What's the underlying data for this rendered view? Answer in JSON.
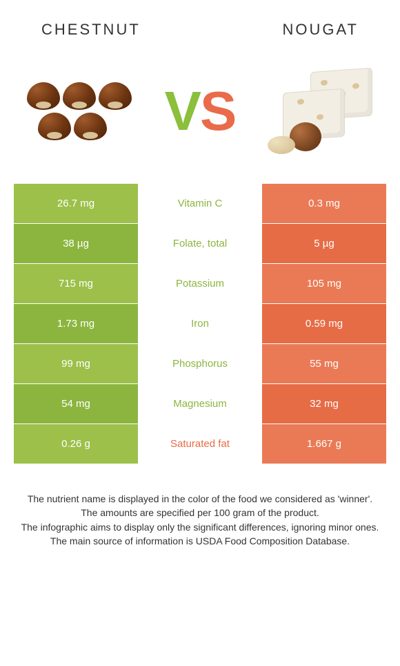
{
  "header": {
    "left_title": "Chestnut",
    "right_title": "Nougat"
  },
  "vs": {
    "v": "V",
    "s": "S"
  },
  "colors": {
    "left_bg_odd": "#9cc04a",
    "left_bg_even": "#8cb53f",
    "right_bg_odd": "#ea7a55",
    "right_bg_even": "#e66c46",
    "mid_bg": "#ffffff",
    "winner_left": "#8cb53f",
    "winner_right": "#e66c46",
    "text_white": "#ffffff",
    "body_text": "#333333"
  },
  "table": {
    "rows": [
      {
        "left": "26.7 mg",
        "label": "Vitamin C",
        "right": "0.3 mg",
        "winner": "left"
      },
      {
        "left": "38 µg",
        "label": "Folate, total",
        "right": "5 µg",
        "winner": "left"
      },
      {
        "left": "715 mg",
        "label": "Potassium",
        "right": "105 mg",
        "winner": "left"
      },
      {
        "left": "1.73 mg",
        "label": "Iron",
        "right": "0.59 mg",
        "winner": "left"
      },
      {
        "left": "99 mg",
        "label": "Phosphorus",
        "right": "55 mg",
        "winner": "left"
      },
      {
        "left": "54 mg",
        "label": "Magnesium",
        "right": "32 mg",
        "winner": "left"
      },
      {
        "left": "0.26 g",
        "label": "Saturated fat",
        "right": "1.667 g",
        "winner": "right"
      }
    ]
  },
  "footnotes": [
    "The nutrient name is displayed in the color of the food we considered as 'winner'.",
    "The amounts are specified per 100 gram of the product.",
    "The infographic aims to display only the significant differences, ignoring minor ones.",
    "The main source of information is USDA Food Composition Database."
  ]
}
